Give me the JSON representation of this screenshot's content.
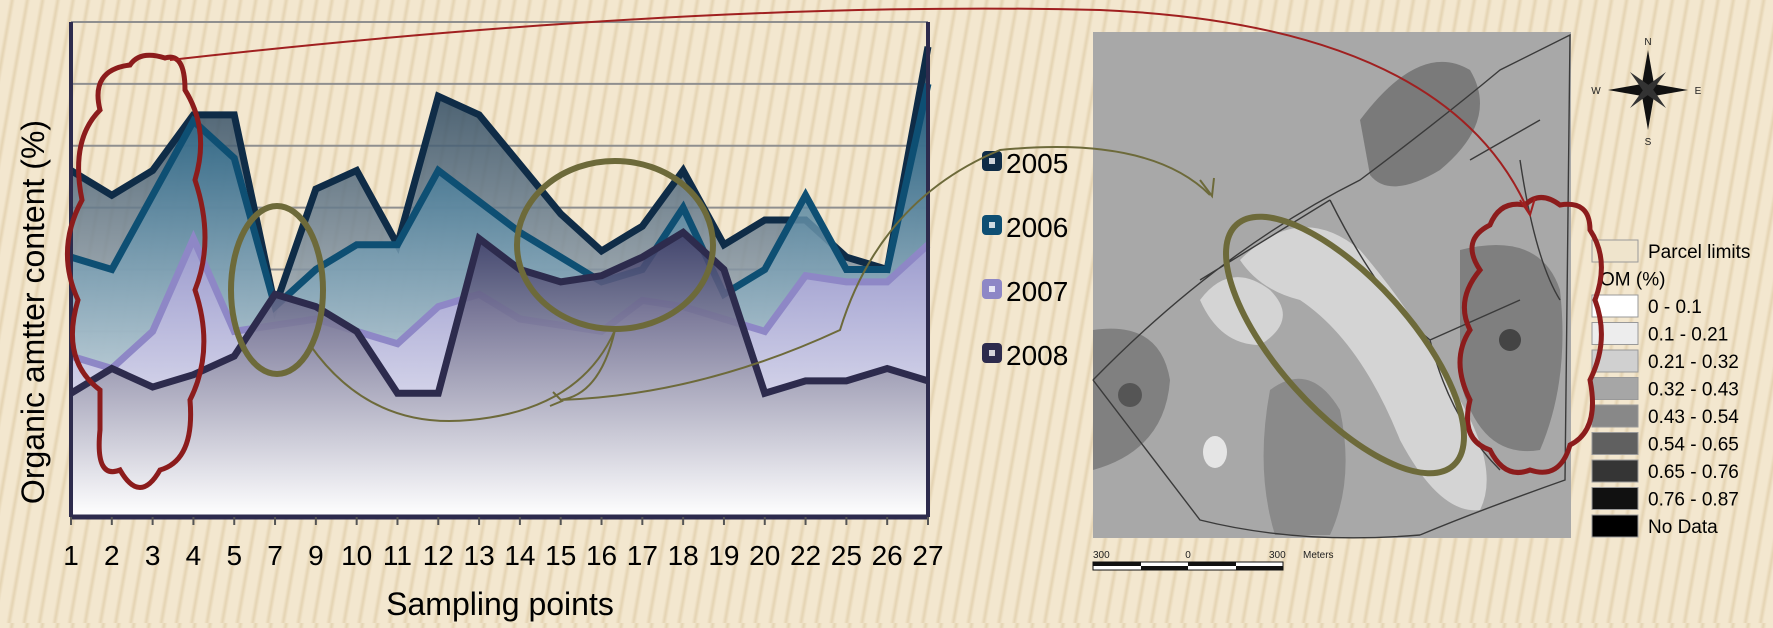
{
  "chart_data": {
    "type": "area",
    "title": "",
    "ylabel": "Organic amtter content (%)",
    "xlabel": "Sampling points",
    "categories": [
      "1",
      "2",
      "3",
      "4",
      "5",
      "7",
      "9",
      "10",
      "11",
      "12",
      "13",
      "14",
      "15",
      "16",
      "17",
      "18",
      "19",
      "20",
      "22",
      "25",
      "26",
      "27"
    ],
    "ylim": [
      0,
      0.8
    ],
    "grid": true,
    "legend_position": "right",
    "series": [
      {
        "name": "2005",
        "color": "#0f2c47",
        "values": [
          0.56,
          0.52,
          0.56,
          0.65,
          0.65,
          0.34,
          0.53,
          0.56,
          0.44,
          0.68,
          0.65,
          0.57,
          0.49,
          0.43,
          0.47,
          0.56,
          0.44,
          0.48,
          0.48,
          0.42,
          0.4,
          0.76
        ]
      },
      {
        "name": "2006",
        "color": "#0e4f73",
        "values": [
          0.42,
          0.4,
          0.52,
          0.64,
          0.58,
          0.34,
          0.4,
          0.44,
          0.44,
          0.56,
          0.51,
          0.46,
          0.42,
          0.38,
          0.4,
          0.5,
          0.36,
          0.4,
          0.52,
          0.4,
          0.4,
          0.7
        ]
      },
      {
        "name": "2007",
        "color": "#8e87c6",
        "values": [
          0.26,
          0.24,
          0.3,
          0.45,
          0.3,
          0.31,
          0.32,
          0.3,
          0.28,
          0.34,
          0.36,
          0.32,
          0.31,
          0.3,
          0.35,
          0.34,
          0.32,
          0.3,
          0.39,
          0.38,
          0.38,
          0.44
        ]
      },
      {
        "name": "2008",
        "color": "#2d2b4d",
        "values": [
          0.2,
          0.24,
          0.21,
          0.23,
          0.26,
          0.36,
          0.34,
          0.3,
          0.2,
          0.2,
          0.45,
          0.4,
          0.38,
          0.39,
          0.42,
          0.46,
          0.4,
          0.2,
          0.22,
          0.22,
          0.24,
          0.22
        ]
      }
    ]
  },
  "map": {
    "compass": {
      "n": "N",
      "e": "E",
      "s": "S",
      "w": "W"
    },
    "legend_items": [
      {
        "label": "Parcel limits",
        "color": "#efe4cc"
      },
      {
        "label": "OM (%)",
        "color": ""
      },
      {
        "label": "0 - 0.1",
        "color": "#ffffff"
      },
      {
        "label": "0.1 - 0.21",
        "color": "#ededed"
      },
      {
        "label": "0.21 - 0.32",
        "color": "#d0d0d0"
      },
      {
        "label": "0.32 - 0.43",
        "color": "#a6a6a6"
      },
      {
        "label": "0.43 - 0.54",
        "color": "#888888"
      },
      {
        "label": "0.54 - 0.65",
        "color": "#606060"
      },
      {
        "label": "0.65 - 0.76",
        "color": "#353535"
      },
      {
        "label": "0.76 - 0.87",
        "color": "#111111"
      },
      {
        "label": "No Data",
        "color": "#000000"
      }
    ],
    "scale": {
      "left": "300",
      "mid": "0",
      "right": "300",
      "unit": "Meters"
    }
  }
}
